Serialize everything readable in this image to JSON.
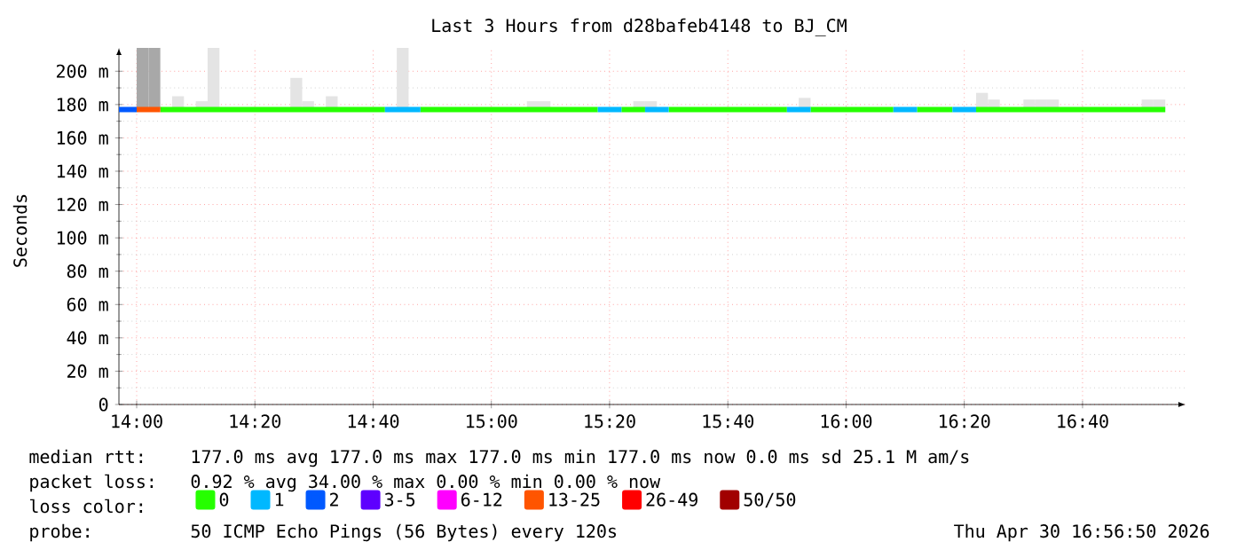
{
  "chart_data": {
    "type": "line",
    "title": "Last 3 Hours from d28bafeb4148 to BJ_CM",
    "ylabel": "Seconds",
    "xlim": [
      13.95,
      16.957
    ],
    "ylim": [
      0,
      214
    ],
    "xticks": [
      {
        "value": 14,
        "label": "14:00"
      },
      {
        "value": 14.3333,
        "label": "14:20"
      },
      {
        "value": 14.6667,
        "label": "14:40"
      },
      {
        "value": 15,
        "label": "15:00"
      },
      {
        "value": 15.3333,
        "label": "15:20"
      },
      {
        "value": 15.6667,
        "label": "15:40"
      },
      {
        "value": 16,
        "label": "16:00"
      },
      {
        "value": 16.3333,
        "label": "16:20"
      },
      {
        "value": 16.6667,
        "label": "16:40"
      }
    ],
    "yticks": [
      0,
      {
        "value": 20,
        "label": "20 m"
      },
      {
        "value": 40,
        "label": "40 m"
      },
      {
        "value": 60,
        "label": "60 m"
      },
      {
        "value": 80,
        "label": "80 m"
      },
      {
        "value": 100,
        "label": "100 m"
      },
      {
        "value": 120,
        "label": "120 m"
      },
      {
        "value": 140,
        "label": "140 m"
      },
      {
        "value": 160,
        "label": "160 m"
      },
      {
        "value": 180,
        "label": "180 m"
      },
      {
        "value": 200,
        "label": "200 m"
      }
    ],
    "grid": true,
    "legend": "bottom",
    "line_style": "solid",
    "marker": "none",
    "series": [
      {
        "type": "bar",
        "x": [
          14.0167,
          14.05,
          14.1167,
          14.1833,
          14.2167,
          14.45,
          14.4833,
          14.55,
          14.75,
          15.1167,
          15.15,
          15.4167,
          15.45,
          15.8833,
          16.3833,
          16.4167,
          16.5167,
          16.55,
          16.5833,
          16.85,
          16.8833
        ],
        "base": [
          177,
          177,
          177,
          177,
          177,
          177,
          177,
          177,
          177,
          177,
          177,
          177,
          177,
          177,
          177,
          177,
          177,
          177,
          177,
          177,
          177
        ],
        "values": [
          37,
          37,
          8,
          5,
          37,
          19,
          5,
          8,
          37,
          5,
          5,
          5,
          5,
          7,
          10,
          6,
          6,
          6,
          6,
          6,
          6
        ],
        "colors": [
          "#a8a8a8",
          "#a8a8a8",
          "#e4e4e4",
          "#e4e4e4",
          "#e4e4e4",
          "#e4e4e4",
          "#e4e4e4",
          "#e4e4e4",
          "#e4e4e4",
          "#e4e4e4",
          "#e4e4e4",
          "#e4e4e4",
          "#e4e4e4",
          "#e4e4e4",
          "#e4e4e4",
          "#e4e4e4",
          "#e4e4e4",
          "#e4e4e4",
          "#e4e4e4",
          "#e4e4e4",
          "#e4e4e4"
        ]
      },
      {
        "name": "0",
        "color": "#26ff00",
        "x": [
          14.0667,
          14.7,
          14.7333,
          14.8,
          15.3,
          15.3333,
          15.3667,
          15.4333,
          15.4667,
          15.5,
          15.8333,
          15.8667,
          15.9,
          16.1333,
          16.1667,
          16.2,
          16.3,
          16.3333,
          16.3667,
          16.9
        ],
        "values": [
          177,
          177,
          null,
          177,
          177,
          null,
          177,
          177,
          null,
          177,
          177,
          null,
          177,
          177,
          null,
          177,
          177,
          null,
          177,
          177
        ]
      },
      {
        "name": "1",
        "color": "#00b8ff",
        "x": [
          14.7,
          14.8,
          15.0,
          15.3,
          15.3667,
          15.4,
          15.4333,
          15.5,
          15.6667,
          15.8333,
          15.9,
          16.0,
          16.1333,
          16.2,
          16.25,
          16.3,
          16.3667
        ],
        "values": [
          177,
          177,
          null,
          177,
          177,
          null,
          177,
          177,
          null,
          177,
          177,
          null,
          177,
          177,
          null,
          177,
          177
        ]
      },
      {
        "name": "2",
        "color": "#0059ff",
        "x": [
          13.95,
          14.0
        ],
        "values": [
          177,
          177
        ]
      },
      {
        "name": "3-5",
        "color": "#5e00ff"
      },
      {
        "name": "6-12",
        "color": "#ff00ff"
      },
      {
        "name": "13-25",
        "color": "#ff5500",
        "x": [
          14.0,
          14.0667
        ],
        "values": [
          177,
          177
        ]
      },
      {
        "name": "26-49",
        "color": "#ff0000"
      },
      {
        "name": "50/50",
        "color": "#a10000"
      }
    ],
    "annotations": [
      "median rtt:",
      "177.0 ms avg  177.0 ms max  177.0 ms min  177.0 ms now  0.0 ms sd  25.1 M am/s",
      "packet loss:",
      "0.92 % avg  34.00 % max  0.00 % min  0.00 % now",
      "loss color:",
      "probe:",
      "50 ICMP Echo Pings (56 Bytes) every 120s",
      "Thu Apr 30 16:56:50 2026"
    ]
  }
}
